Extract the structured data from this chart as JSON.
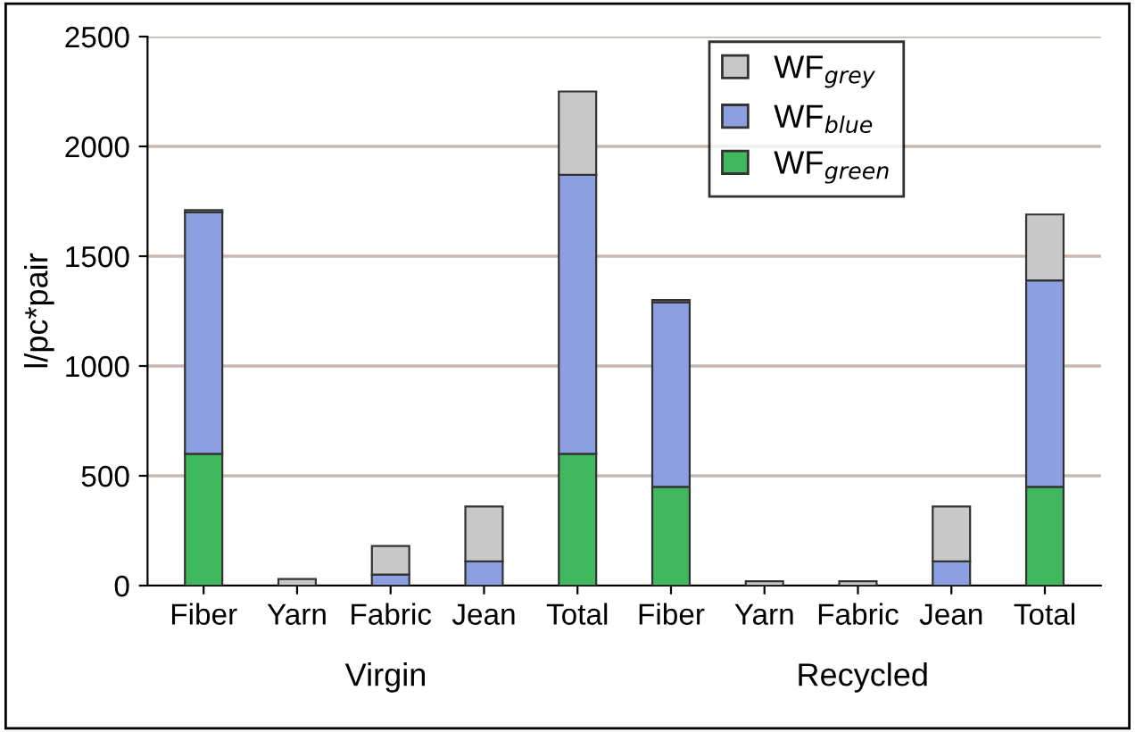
{
  "chart_data": {
    "type": "bar",
    "stacked": true,
    "ylabel": "l/pc*pair",
    "categories": [
      "Fiber",
      "Yarn",
      "Fabric",
      "Jean",
      "Total",
      "Fiber",
      "Yarn",
      "Fabric",
      "Jean",
      "Total"
    ],
    "series": [
      {
        "name": "WF$_{green}$",
        "color": "#3fb85e",
        "values": [
          600,
          0,
          0,
          0,
          600,
          450,
          0,
          0,
          0,
          450
        ]
      },
      {
        "name": "WF$_{blue}$",
        "color": "#8c9fe0",
        "values": [
          1100,
          0,
          50,
          110,
          1270,
          840,
          0,
          0,
          110,
          940
        ]
      },
      {
        "name": "WF$_{grey}$",
        "color": "#c8c8c8",
        "values": [
          10,
          30,
          130,
          250,
          380,
          10,
          20,
          20,
          250,
          300
        ]
      }
    ],
    "ylim": [
      0,
      2500
    ],
    "yticks": [
      0,
      500,
      1000,
      1500,
      2000,
      2500
    ],
    "grid": "y",
    "legend": "top right",
    "annotations": [
      "Virgin",
      "Recycled"
    ]
  }
}
